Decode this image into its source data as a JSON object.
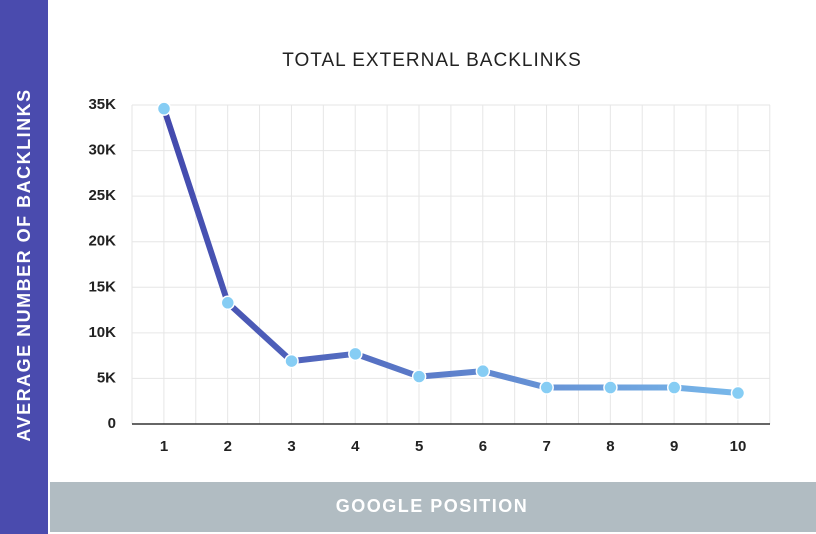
{
  "chart_data": {
    "type": "line",
    "title": "TOTAL EXTERNAL BACKLINKS",
    "x_label": "GOOGLE POSITION",
    "y_label": "AVERAGE NUMBER OF BACKLINKS",
    "categories": [
      "1",
      "2",
      "3",
      "4",
      "5",
      "6",
      "7",
      "8",
      "9",
      "10"
    ],
    "values": [
      34600,
      13300,
      6900,
      7700,
      5200,
      5800,
      4000,
      4000,
      4000,
      3400
    ],
    "ylim": [
      0,
      35000
    ],
    "yticks": [
      0,
      {
        "value": 5000,
        "label": "5K"
      },
      {
        "value": 10000,
        "label": "10K"
      },
      {
        "value": 15000,
        "label": "15K"
      },
      {
        "value": 20000,
        "label": "20K"
      },
      {
        "value": 25000,
        "label": "25K"
      },
      {
        "value": 30000,
        "label": "30K"
      },
      {
        "value": 35000,
        "label": "35K"
      }
    ],
    "grid": true,
    "line_gradient": [
      "#4349ad",
      "#78b8ea"
    ],
    "marker_color": "#86cdf4"
  }
}
